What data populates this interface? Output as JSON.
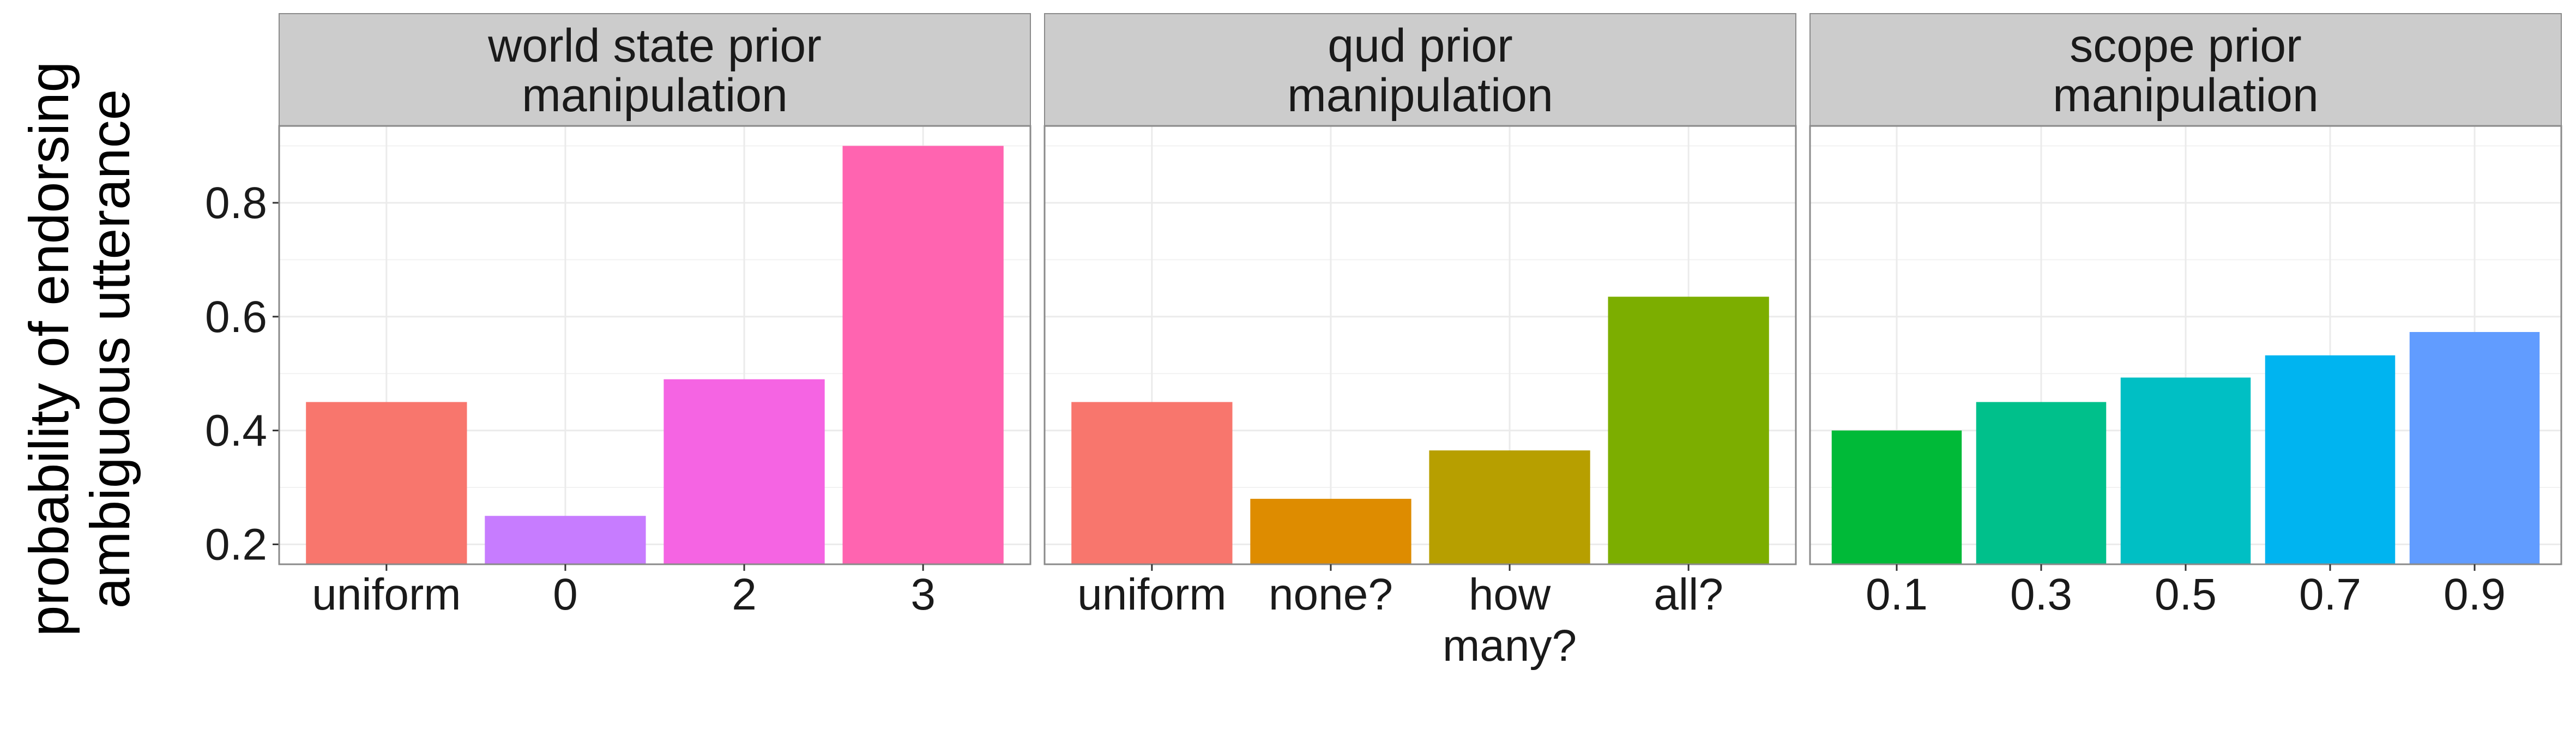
{
  "y_title": [
    "probability of endorsing",
    "ambiguous utterance"
  ],
  "y_ticks": [
    "0.2",
    "0.4",
    "0.6",
    "0.8"
  ],
  "chart_data": [
    {
      "type": "bar",
      "panel_title": [
        "world state prior",
        "manipulation"
      ],
      "categories": [
        [
          "uniform"
        ],
        [
          "0"
        ],
        [
          "2"
        ],
        [
          "3"
        ]
      ],
      "values": [
        0.45,
        0.25,
        0.49,
        0.9
      ],
      "colors": [
        "#F8766D",
        "#C77CFF",
        "#F564E3",
        "#FF64B0"
      ],
      "ylim": [
        0.165,
        0.935
      ],
      "ylabel": "probability of endorsing ambiguous utterance",
      "grid": true,
      "legend": "none"
    },
    {
      "type": "bar",
      "panel_title": [
        "qud prior",
        "manipulation"
      ],
      "categories": [
        [
          "uniform"
        ],
        [
          "none?"
        ],
        [
          "how",
          "many?"
        ],
        [
          "all?"
        ]
      ],
      "values": [
        0.45,
        0.28,
        0.365,
        0.635
      ],
      "colors": [
        "#F8766D",
        "#DE8C00",
        "#B79F00",
        "#7CAE00"
      ],
      "ylim": [
        0.165,
        0.935
      ],
      "grid": true,
      "legend": "none"
    },
    {
      "type": "bar",
      "panel_title": [
        "scope prior",
        "manipulation"
      ],
      "categories": [
        [
          "0.1"
        ],
        [
          "0.3"
        ],
        [
          "0.5"
        ],
        [
          "0.7"
        ],
        [
          "0.9"
        ]
      ],
      "values": [
        0.4,
        0.45,
        0.493,
        0.532,
        0.573
      ],
      "colors": [
        "#00BA38",
        "#00C08B",
        "#00BFC4",
        "#00B4F0",
        "#619CFF"
      ],
      "ylim": [
        0.165,
        0.935
      ],
      "grid": true,
      "legend": "none"
    }
  ]
}
